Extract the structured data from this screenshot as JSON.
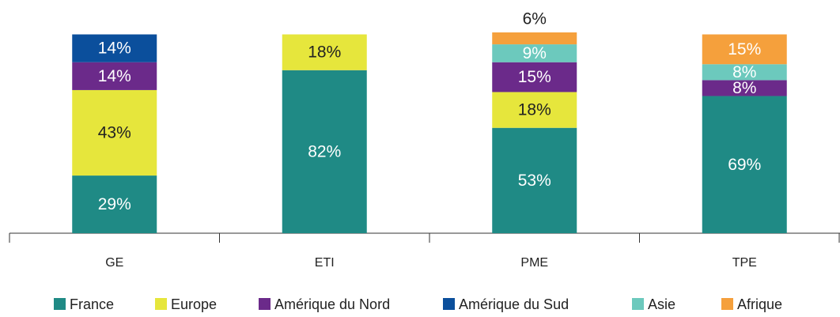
{
  "chart_data": {
    "type": "stacked_bar",
    "categories": [
      "GE",
      "ETI",
      "PME",
      "TPE"
    ],
    "series": [
      {
        "name": "France",
        "color": "#1f8a85",
        "label_color": "#ffffff",
        "values": [
          29,
          82,
          53,
          69
        ],
        "value_labels": [
          "29%",
          "82%",
          "53%",
          "69%"
        ]
      },
      {
        "name": "Europe",
        "color": "#e6e63c",
        "label_color": "#222222",
        "values": [
          43,
          18,
          18,
          null
        ],
        "value_labels": [
          "43%",
          "18%",
          "18%",
          null
        ]
      },
      {
        "name": "Amérique du Nord",
        "color": "#6b2a8a",
        "label_color": "#ffffff",
        "values": [
          14,
          null,
          15,
          8
        ],
        "value_labels": [
          "14%",
          null,
          "15%",
          "8%"
        ]
      },
      {
        "name": "Amérique du Sud",
        "color": "#0b4f9c",
        "label_color": "#ffffff",
        "values": [
          14,
          null,
          null,
          null
        ],
        "value_labels": [
          "14%",
          null,
          null,
          null
        ]
      },
      {
        "name": "Asie",
        "color": "#6cc9bd",
        "label_color": "#ffffff",
        "values": [
          null,
          null,
          9,
          8
        ],
        "value_labels": [
          null,
          null,
          "9%",
          "8%"
        ]
      },
      {
        "name": "Afrique",
        "color": "#f5a03c",
        "label_color": "#ffffff",
        "values": [
          null,
          null,
          6,
          15
        ],
        "value_labels": [
          null,
          null,
          "6%",
          "15%"
        ]
      }
    ]
  }
}
